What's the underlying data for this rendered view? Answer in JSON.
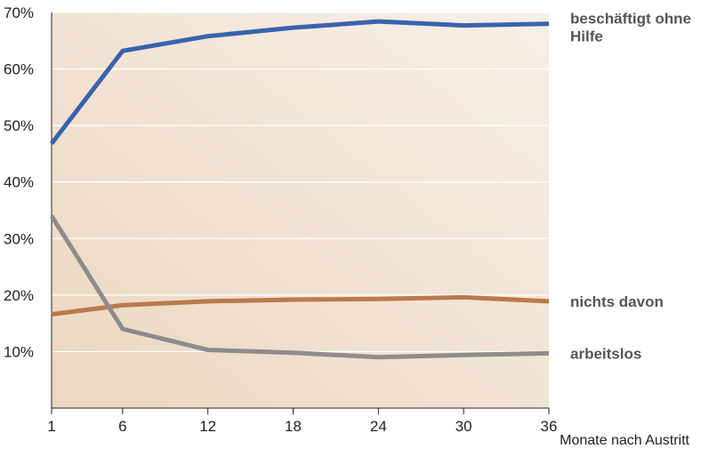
{
  "chart_data": {
    "type": "line",
    "x": [
      1,
      6,
      12,
      18,
      24,
      30,
      36
    ],
    "x_tick_labels": [
      "1",
      "6",
      "12",
      "18",
      "24",
      "30",
      "36"
    ],
    "xlabel": "Monate nach Austritt",
    "ylabel": "",
    "ylim": [
      0,
      70
    ],
    "y_ticks": [
      10,
      20,
      30,
      40,
      50,
      60,
      70
    ],
    "y_tick_labels": [
      "10%",
      "20%",
      "30%",
      "40%",
      "50%",
      "60%",
      "70%"
    ],
    "grid": "horizontal",
    "legend_placement": "right (inline labels)",
    "series": [
      {
        "name": "beschäftigt ohne Hilfe",
        "name_lines": [
          "beschäftigt ohne",
          "Hilfe"
        ],
        "color": "#3a62ad",
        "values": [
          46.8,
          63.2,
          65.8,
          67.3,
          68.4,
          67.7,
          68.0
        ]
      },
      {
        "name": "nichts davon",
        "name_lines": [
          "nichts davon"
        ],
        "color": "#b97a4c",
        "values": [
          16.6,
          18.2,
          18.9,
          19.2,
          19.3,
          19.6,
          18.9
        ]
      },
      {
        "name": "arbeitslos",
        "name_lines": [
          "arbeitslos"
        ],
        "color": "#8c8c8c",
        "values": [
          34.0,
          14.0,
          10.3,
          9.8,
          9.0,
          9.4,
          9.7
        ]
      }
    ],
    "colors": {
      "background_light": "#f7f0e8",
      "background_dark": "#ecd7c0",
      "grid": "#ffffff",
      "axis": "#222222"
    }
  }
}
